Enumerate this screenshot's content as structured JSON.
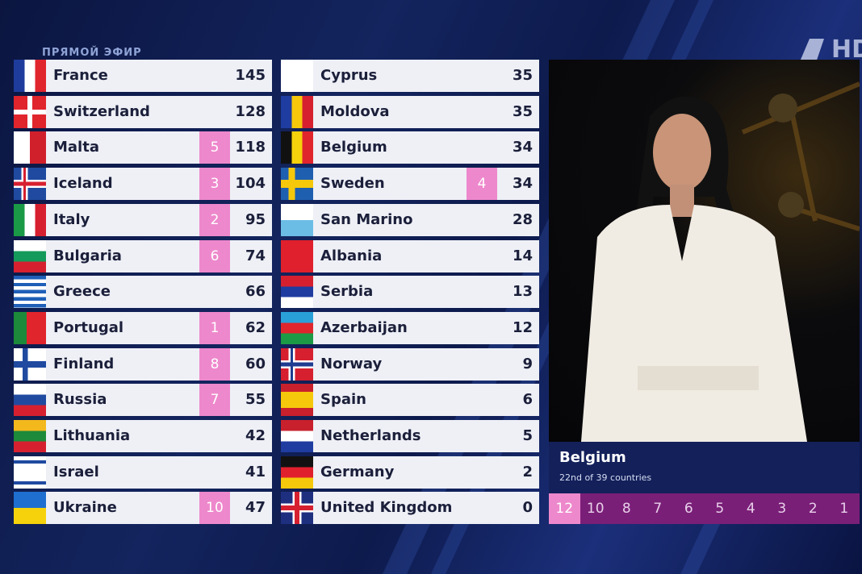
{
  "header": {
    "live_label": "ПРЯМОЙ ЭФИР",
    "logo_text": "HD"
  },
  "scoreboard": {
    "left": [
      {
        "country": "France",
        "points": null,
        "total": 145
      },
      {
        "country": "Switzerland",
        "points": null,
        "total": 128
      },
      {
        "country": "Malta",
        "points": 5,
        "total": 118
      },
      {
        "country": "Iceland",
        "points": 3,
        "total": 104
      },
      {
        "country": "Italy",
        "points": 2,
        "total": 95
      },
      {
        "country": "Bulgaria",
        "points": 6,
        "total": 74
      },
      {
        "country": "Greece",
        "points": null,
        "total": 66
      },
      {
        "country": "Portugal",
        "points": 1,
        "total": 62
      },
      {
        "country": "Finland",
        "points": 8,
        "total": 60
      },
      {
        "country": "Russia",
        "points": 7,
        "total": 55
      },
      {
        "country": "Lithuania",
        "points": null,
        "total": 42
      },
      {
        "country": "Israel",
        "points": null,
        "total": 41
      },
      {
        "country": "Ukraine",
        "points": 10,
        "total": 47
      }
    ],
    "right": [
      {
        "country": "Cyprus",
        "points": null,
        "total": 35
      },
      {
        "country": "Moldova",
        "points": null,
        "total": 35
      },
      {
        "country": "Belgium",
        "points": null,
        "total": 34
      },
      {
        "country": "Sweden",
        "points": 4,
        "total": 34
      },
      {
        "country": "San Marino",
        "points": null,
        "total": 28
      },
      {
        "country": "Albania",
        "points": null,
        "total": 14
      },
      {
        "country": "Serbia",
        "points": null,
        "total": 13
      },
      {
        "country": "Azerbaijan",
        "points": null,
        "total": 12
      },
      {
        "country": "Norway",
        "points": null,
        "total": 9
      },
      {
        "country": "Spain",
        "points": null,
        "total": 6
      },
      {
        "country": "Netherlands",
        "points": null,
        "total": 5
      },
      {
        "country": "Germany",
        "points": null,
        "total": 2
      },
      {
        "country": "United Kingdom",
        "points": null,
        "total": 0
      }
    ]
  },
  "voter": {
    "country": "Belgium",
    "rank": "22nd of 39 countries",
    "points_strip": [
      12,
      10,
      8,
      7,
      6,
      5,
      4,
      3,
      2,
      1
    ]
  }
}
